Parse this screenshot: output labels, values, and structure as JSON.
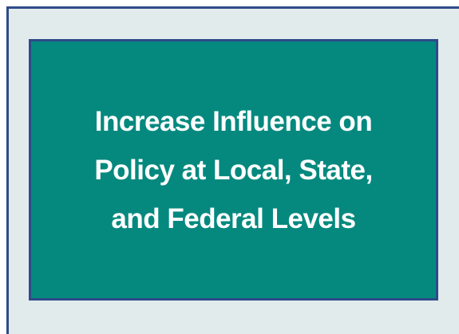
{
  "box": {
    "text_lines": [
      "Increase Influence on",
      "Policy at Local, State,",
      "and Federal Levels"
    ]
  }
}
